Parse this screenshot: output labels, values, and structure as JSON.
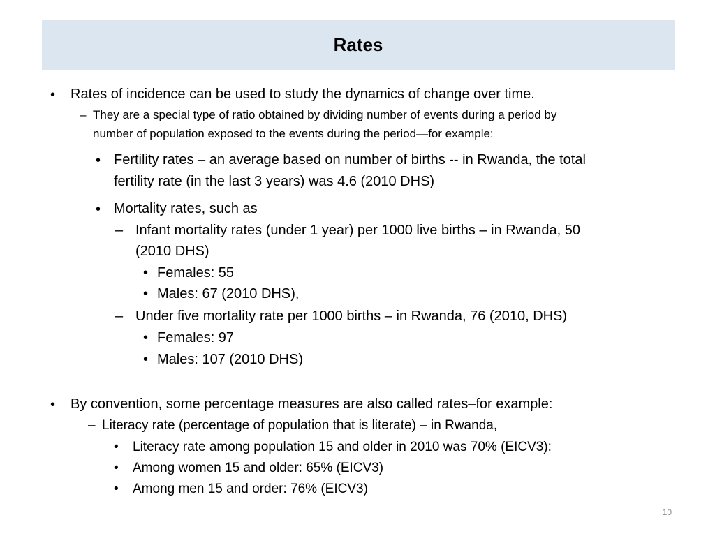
{
  "slide": {
    "title": "Rates",
    "page_number": "10",
    "b1": {
      "text": "Rates of incidence can be used to study the dynamics of change over time.",
      "sub": {
        "line1": "They are a special type of ratio obtained by dividing number of events during a period by",
        "line2": "number of population exposed to the events during the period—for example:"
      },
      "fertility": {
        "line1": "Fertility rates – an average based on number of births -- in Rwanda, the total",
        "line2": "fertility rate (in the last 3 years) was 4.6  (2010 DHS)"
      },
      "mortality": "Mortality rates, such as",
      "infant": {
        "line1": "Infant mortality rates (under 1 year) per 1000 live births – in Rwanda, 50",
        "line2": "(2010 DHS)",
        "females": "Females:  55",
        "males": "Males:      67 (2010 DHS),"
      },
      "under_five": {
        "line1": "Under five mortality rate per 1000 births – in Rwanda, 76 (2010, DHS)",
        "females": "Females:  97",
        "males": "Males:    107 (2010 DHS)"
      }
    },
    "b2": {
      "text": "By convention, some percentage measures are also called rates–for example:",
      "literacy": "Literacy rate (percentage of population that is literate) – in Rwanda,",
      "items": [
        "Literacy rate among population 15 and older in 2010 was 70% (EICV3):",
        "Among women 15 and older: 65% (EICV3)",
        "Among men 15 and order:      76% (EICV3)"
      ]
    }
  }
}
